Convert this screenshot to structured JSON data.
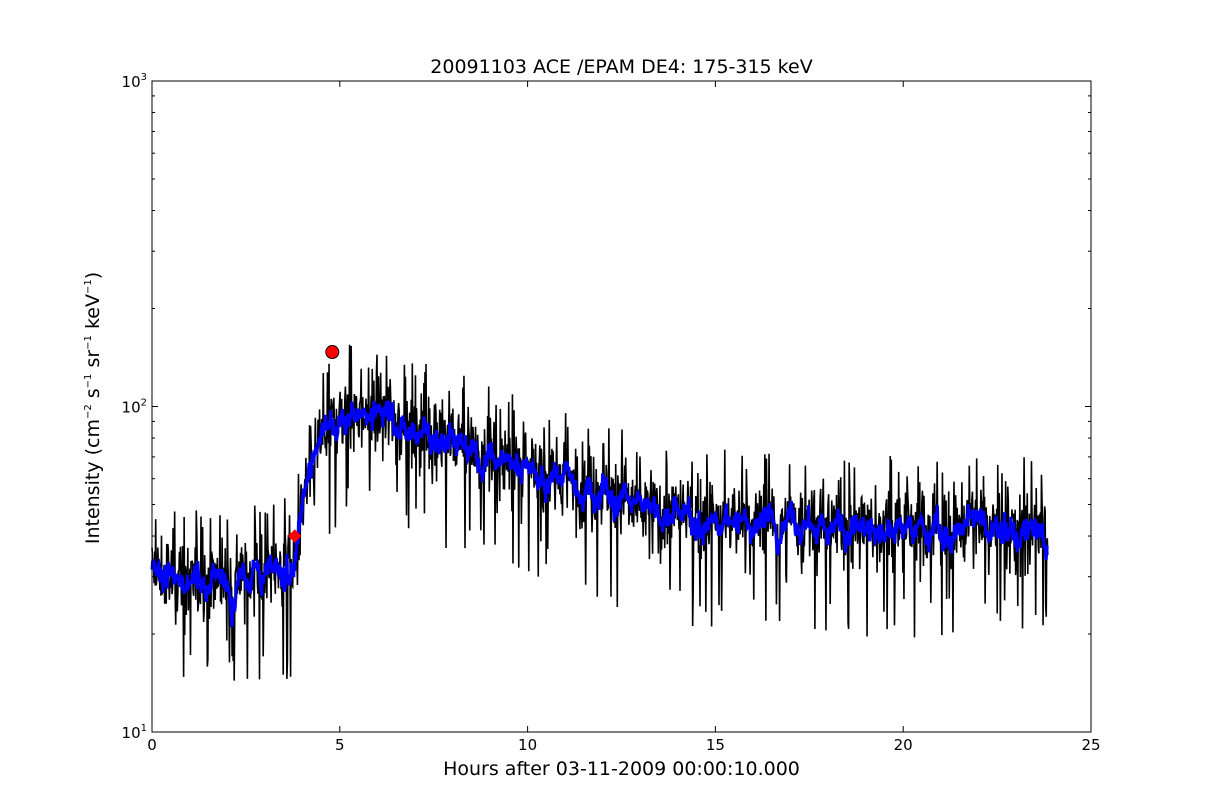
{
  "chart_data": {
    "type": "line",
    "title": "20091103 ACE /EPAM DE4: 175-315 keV",
    "xlabel": "Hours after 03-11-2009 00:00:10.000",
    "ylabel": {
      "base": "Intensity (cm",
      "e1": "−2",
      "u2": " s",
      "e2": "−1",
      "u3": " sr",
      "e3": "−1",
      "u4": " keV",
      "e4": "−1",
      "end": ")"
    },
    "xlim": [
      0,
      25
    ],
    "ylim": [
      10,
      1000
    ],
    "yscale": "log",
    "xticks": [
      0,
      5,
      10,
      15,
      20,
      25
    ],
    "yticks": [
      {
        "value": 10,
        "base": "10",
        "exp": "1"
      },
      {
        "value": 100,
        "base": "10",
        "exp": "2"
      },
      {
        "value": 1000,
        "base": "10",
        "exp": "3"
      }
    ],
    "grid": false,
    "series": [
      {
        "style": "raw",
        "color": "#000000",
        "x_range": [
          0,
          23.85
        ],
        "profile": [
          [
            0,
            30
          ],
          [
            1,
            29
          ],
          [
            2,
            30
          ],
          [
            3,
            31
          ],
          [
            3.7,
            32
          ],
          [
            3.85,
            35
          ],
          [
            4.1,
            55
          ],
          [
            4.5,
            80
          ],
          [
            5,
            95
          ],
          [
            6,
            97
          ],
          [
            7,
            88
          ],
          [
            8,
            78
          ],
          [
            9,
            70
          ],
          [
            10,
            64
          ],
          [
            11,
            60
          ],
          [
            12,
            57
          ],
          [
            13,
            48
          ],
          [
            15,
            45
          ],
          [
            17,
            43
          ],
          [
            20,
            43
          ],
          [
            22,
            43
          ],
          [
            23.85,
            42
          ]
        ]
      },
      {
        "style": "smoothed",
        "color": "#0000ff",
        "x_range": [
          0,
          23.85
        ]
      }
    ],
    "markers": [
      {
        "shape": "circle",
        "color": "#ff0000",
        "x": 4.8,
        "y": 147
      },
      {
        "shape": "diamond",
        "color": "#ff0000",
        "x": 3.8,
        "y": 40
      }
    ]
  }
}
